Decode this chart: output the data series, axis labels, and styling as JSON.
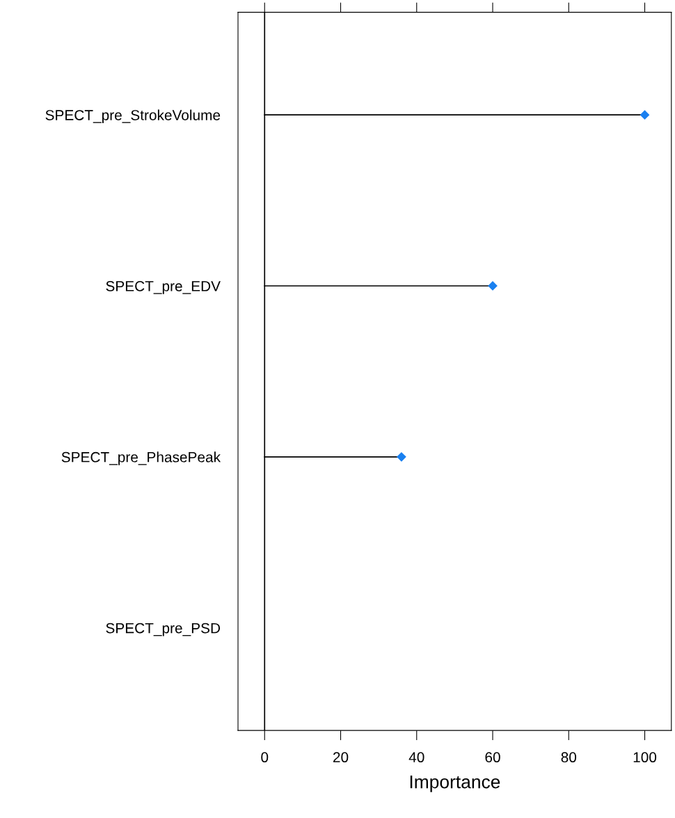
{
  "chart_data": {
    "type": "lollipop",
    "orientation": "horizontal",
    "xlabel": "Importance",
    "categories": [
      "SPECT_pre_StrokeVolume",
      "SPECT_pre_EDV",
      "SPECT_pre_PhasePeak",
      "SPECT_pre_PSD"
    ],
    "values": [
      100,
      60,
      36,
      null
    ],
    "color": "#1a80f0",
    "marker": "diamond",
    "xlim": [
      -7,
      107
    ],
    "xticks": [
      0,
      20,
      40,
      60,
      80,
      100
    ],
    "ref_lines": [
      {
        "axis": "x",
        "value": 0,
        "color": "#000000"
      }
    ],
    "grid": false,
    "legend": false
  }
}
